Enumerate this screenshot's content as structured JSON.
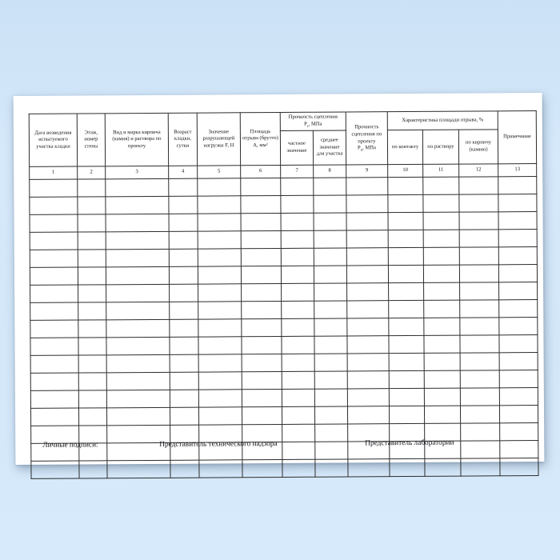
{
  "background_color": "#d3e7f9",
  "page_color": "#ffffff",
  "border_color": "#2c2c2c",
  "table": {
    "columns": [
      {
        "num": "1",
        "label": "Дата возведения испытуемого участка кладки"
      },
      {
        "num": "2",
        "label": "Этаж, номер стены"
      },
      {
        "num": "3",
        "label": "Вид и марка кирпича (камня) и раствора по проекту"
      },
      {
        "num": "4",
        "label": "Возраст кладки, сутки"
      },
      {
        "num": "5",
        "label": "Значение разрушающей нагрузки F, Н"
      },
      {
        "num": "6",
        "label": "Площадь отрыва (брутто) А, мм²"
      },
      {
        "num": "7",
        "label": "частное значение"
      },
      {
        "num": "8",
        "label": "среднее значение для участка"
      },
      {
        "num": "9",
        "label": "Прочность сцепления по проекту",
        "symbol": "Р",
        "symbol_sub": "н",
        "unit": ", МПа"
      },
      {
        "num": "10",
        "label": "по контакту"
      },
      {
        "num": "11",
        "label": "по раствору"
      },
      {
        "num": "12",
        "label": "по кирпичу (камню)"
      },
      {
        "num": "13",
        "label": "Примечание"
      }
    ],
    "group_bond_strength": {
      "label": "Прочность сцепления",
      "symbol": "Р",
      "symbol_sub": "т",
      "unit": ", МПа"
    },
    "group_area_character": {
      "label": "Характеристика площади отрыва, %"
    },
    "empty_row_count": 17
  },
  "footer": {
    "signatures_label": "Личные подписи:",
    "tech_supervisor": "Представитель технического надзора",
    "lab_representative": "Представитель лаборатории"
  }
}
